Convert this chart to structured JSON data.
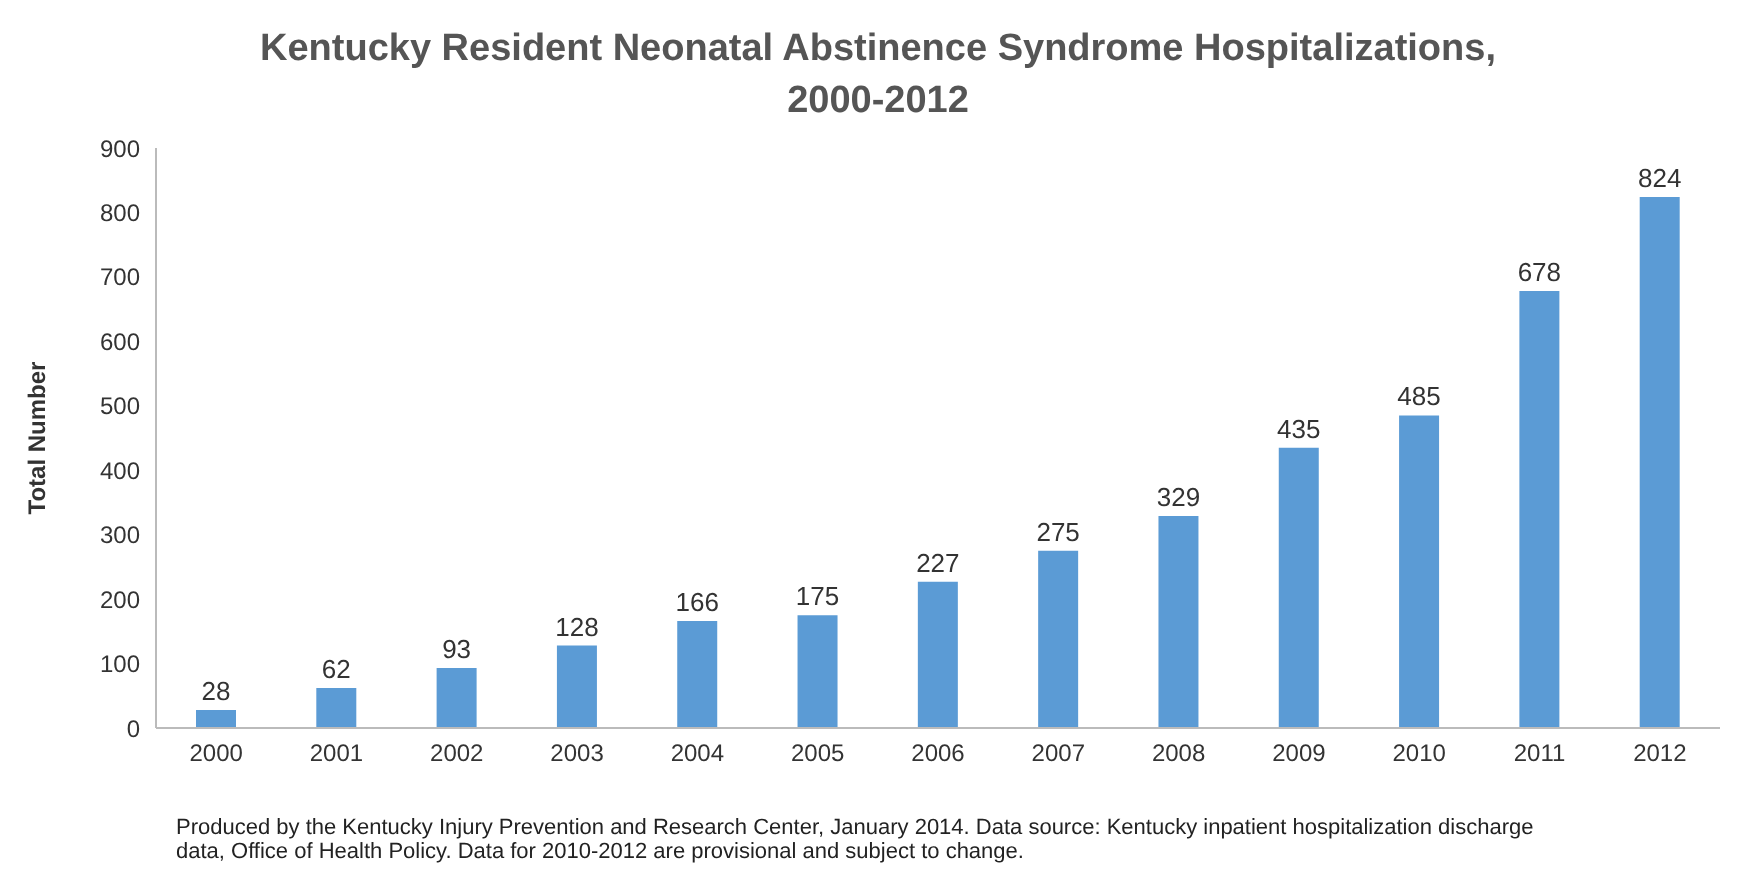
{
  "chart_data": {
    "type": "bar",
    "title": "Kentucky Resident Neonatal Abstinence Syndrome  Hospitalizations, 2000-2012",
    "ylabel": "Total Number",
    "categories": [
      "2000",
      "2001",
      "2002",
      "2003",
      "2004",
      "2005",
      "2006",
      "2007",
      "2008",
      "2009",
      "2010",
      "2011",
      "2012"
    ],
    "values": [
      28,
      62,
      93,
      128,
      166,
      175,
      227,
      275,
      329,
      435,
      485,
      678,
      824
    ],
    "color": "#5b9bd5",
    "ylim": [
      0,
      900
    ],
    "yticks": [
      0,
      100,
      200,
      300,
      400,
      500,
      600,
      700,
      800,
      900
    ],
    "grid": false,
    "data_labels": true,
    "annotations": [
      "Produced by the Kentucky Injury Prevention and Research Center, January 2014. Data source: Kentucky inpatient hospitalization discharge  data, Office of Health Policy. Data for 2010-2012 are provisional and subject to change."
    ]
  }
}
